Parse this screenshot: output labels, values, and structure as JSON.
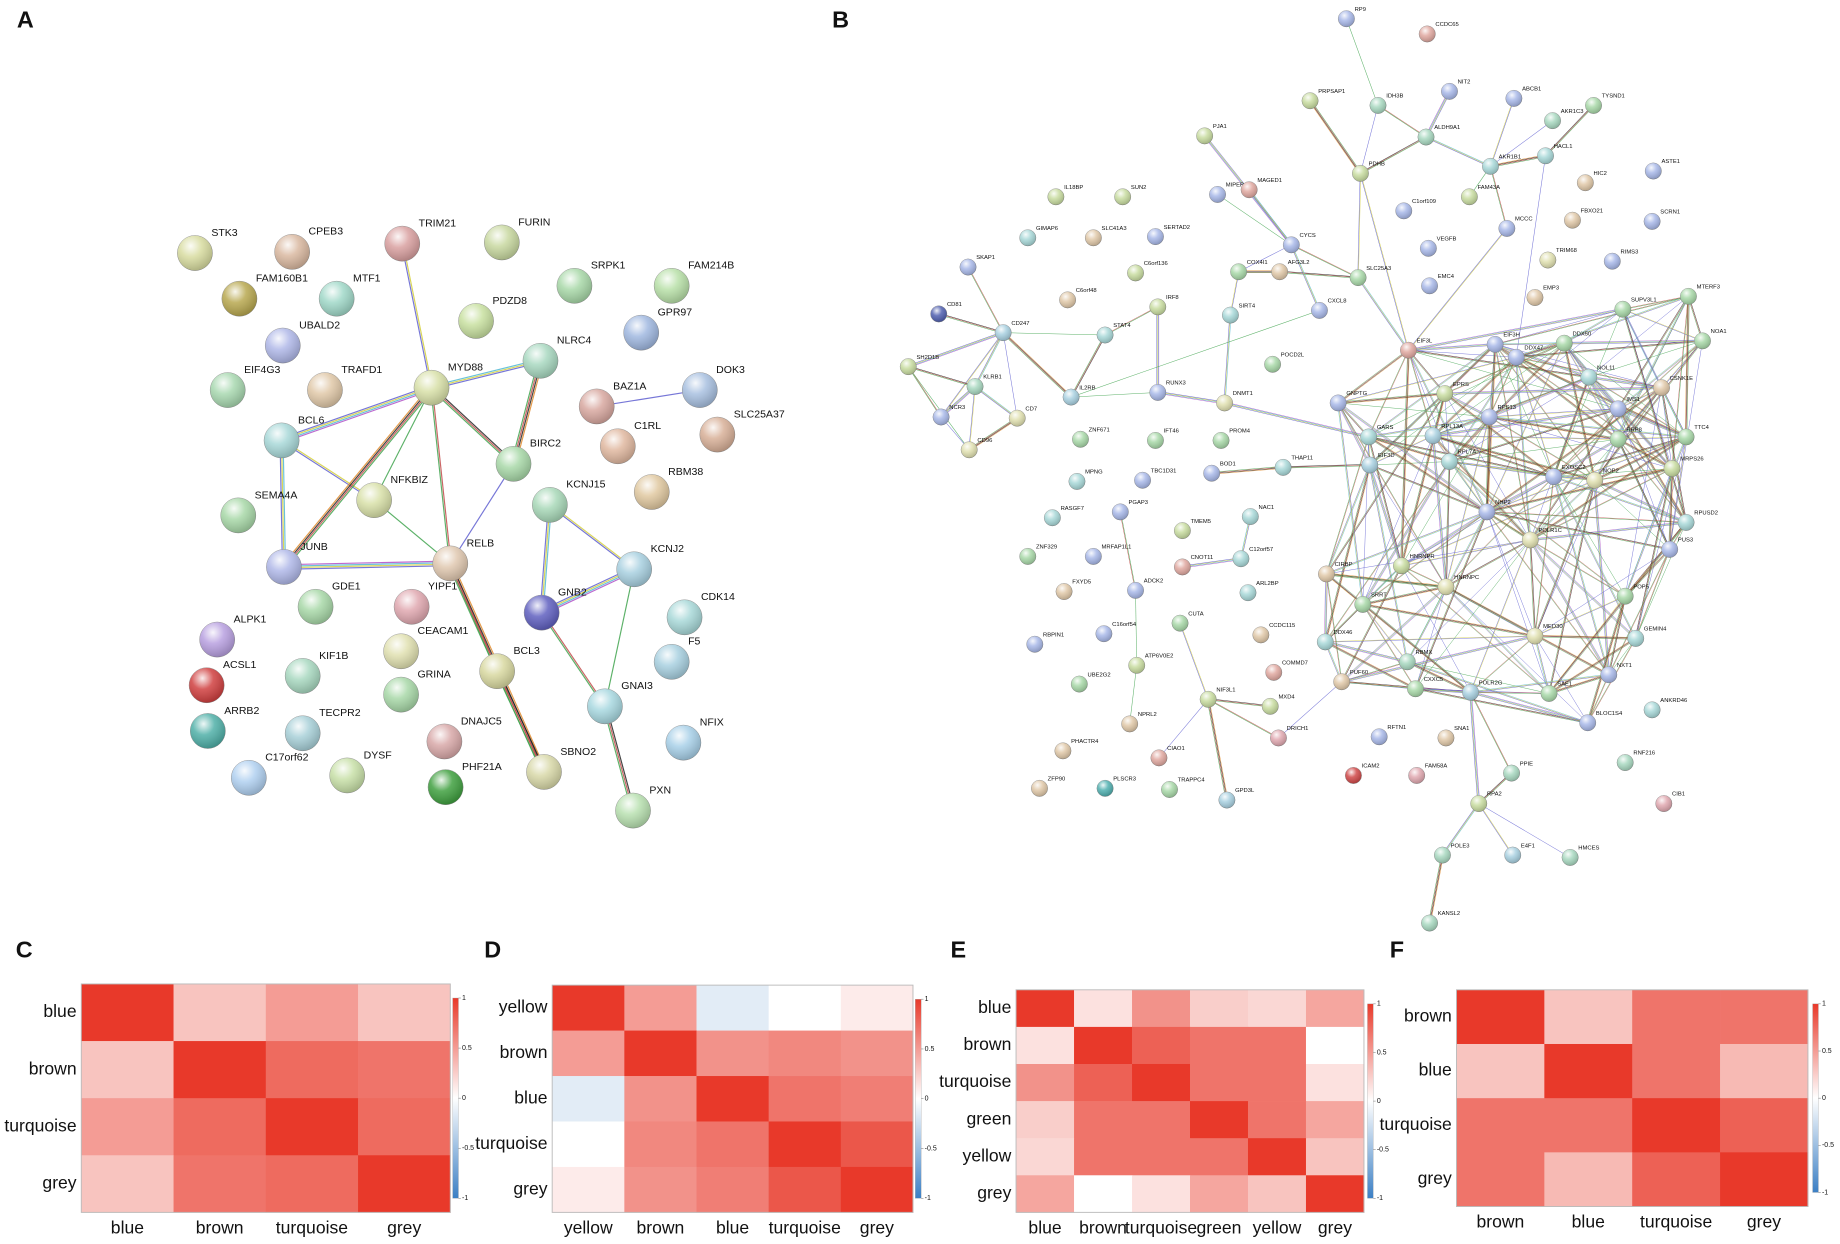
{
  "panel_labels": [
    "A",
    "B",
    "C",
    "D",
    "E",
    "F"
  ],
  "network_a": {
    "nodes": [
      {
        "label": "STK3",
        "color": "#d8dca0"
      },
      {
        "label": "CPEB3",
        "color": "#d9b8a0"
      },
      {
        "label": "TRIM21",
        "color": "#d9a0a0"
      },
      {
        "label": "FURIN",
        "color": "#c8d8a0"
      },
      {
        "label": "FAM160B1",
        "color": "#b8a850"
      },
      {
        "label": "MTF1",
        "color": "#a0d8c8"
      },
      {
        "label": "SRPK1",
        "color": "#a8d8a8"
      },
      {
        "label": "FAM214B",
        "color": "#b8e0a8"
      },
      {
        "label": "UBALD2",
        "color": "#b0b8e8"
      },
      {
        "label": "PDZD8",
        "color": "#c8e0a0"
      },
      {
        "label": "GPR97",
        "color": "#a0b8e0"
      },
      {
        "label": "EIF4G3",
        "color": "#a8d8b0"
      },
      {
        "label": "TRAFD1",
        "color": "#e0c8a8"
      },
      {
        "label": "MYD88",
        "color": "#d8e0a8"
      },
      {
        "label": "NLRC4",
        "color": "#a8d8c0"
      },
      {
        "label": "DOK3",
        "color": "#a8c0e0"
      },
      {
        "label": "BAZ1A",
        "color": "#d8a8a0"
      },
      {
        "label": "BCL6",
        "color": "#a8d8d8"
      },
      {
        "label": "C1RL",
        "color": "#e0b8a0"
      },
      {
        "label": "SLC25A37",
        "color": "#d8b098"
      },
      {
        "label": "BIRC2",
        "color": "#a8d8a8"
      },
      {
        "label": "RBM38",
        "color": "#e0c8a0"
      },
      {
        "label": "SEMA4A",
        "color": "#a8d8a8"
      },
      {
        "label": "NFKBIZ",
        "color": "#d8e0a8"
      },
      {
        "label": "KCNJ15",
        "color": "#a8d8b8"
      },
      {
        "label": "KCNJ2",
        "color": "#a8d0e0"
      },
      {
        "label": "JUNB",
        "color": "#b0b8e8"
      },
      {
        "label": "RELB",
        "color": "#e0c8b0"
      },
      {
        "label": "GDE1",
        "color": "#a8d8a8"
      },
      {
        "label": "YIPF1",
        "color": "#e0a8b0"
      },
      {
        "label": "GNB2",
        "color": "#6060c0"
      },
      {
        "label": "CDK14",
        "color": "#a8d8d8"
      },
      {
        "label": "ALPK1",
        "color": "#b8a0e0"
      },
      {
        "label": "CEACAM1",
        "color": "#e0e0b0"
      },
      {
        "label": "BCL3",
        "color": "#d8d8a0"
      },
      {
        "label": "F5",
        "color": "#a8d0e0"
      },
      {
        "label": "ACSL1",
        "color": "#d04040"
      },
      {
        "label": "KIF1B",
        "color": "#a8d8c0"
      },
      {
        "label": "GRINA",
        "color": "#a8d8a8"
      },
      {
        "label": "ARRB2",
        "color": "#50b0a8"
      },
      {
        "label": "TECPR2",
        "color": "#a8d0d8"
      },
      {
        "label": "GNAI3",
        "color": "#a8d8e0"
      },
      {
        "label": "NFIX",
        "color": "#a8d0e8"
      },
      {
        "label": "DNAJC5",
        "color": "#d8a8a8"
      },
      {
        "label": "C17orf62",
        "color": "#b0d0f0"
      },
      {
        "label": "DYSF",
        "color": "#c8e0a8"
      },
      {
        "label": "SBNO2",
        "color": "#d8d8a8"
      },
      {
        "label": "PHF21A",
        "color": "#40a040"
      },
      {
        "label": "PXN",
        "color": "#b8e0b0"
      }
    ]
  },
  "network_b": {
    "nodes": [
      {
        "label": "RP9",
        "color": "#a8b8e8"
      },
      {
        "label": "CCDC65",
        "color": "#e0a8a0"
      },
      {
        "label": "PRPSAP1",
        "color": "#c8dca0"
      },
      {
        "label": "IDH3B",
        "color": "#a8d8c0"
      },
      {
        "label": "NIT2",
        "color": "#a8b8e8"
      },
      {
        "label": "ABCB1",
        "color": "#a8b8e8"
      },
      {
        "label": "AKR1C3",
        "color": "#a8d8c0"
      },
      {
        "label": "TYSND1",
        "color": "#a8d8a8"
      },
      {
        "label": "ALDH9A1",
        "color": "#a8d8c0"
      },
      {
        "label": "PJA1",
        "color": "#c8dca0"
      },
      {
        "label": "AKR1B1",
        "color": "#a8d8d8"
      },
      {
        "label": "HACL1",
        "color": "#a8d8d8"
      },
      {
        "label": "PDHB",
        "color": "#c8dca0"
      },
      {
        "label": "MIPEP",
        "color": "#a8b8e8"
      },
      {
        "label": "MAGED1",
        "color": "#e0a8a0"
      },
      {
        "label": "FAM43A",
        "color": "#c8dca0"
      },
      {
        "label": "HIC2",
        "color": "#e0c8a8"
      },
      {
        "label": "ASTE1",
        "color": "#a8b8e8"
      },
      {
        "label": "IL18BP",
        "color": "#c8dca0"
      },
      {
        "label": "SUN2",
        "color": "#c8dca0"
      },
      {
        "label": "C1orf109",
        "color": "#a8b8e8"
      },
      {
        "label": "FBXO21",
        "color": "#e0c8a8"
      },
      {
        "label": "SCRN1",
        "color": "#a8b8e8"
      },
      {
        "label": "GIMAP6",
        "color": "#a8d8d8"
      },
      {
        "label": "SLC41A3",
        "color": "#e0c8a8"
      },
      {
        "label": "SERTAD2",
        "color": "#a8b8e8"
      },
      {
        "label": "CYCS",
        "color": "#a8b8e8"
      },
      {
        "label": "MCCC",
        "color": "#a8b8e8"
      },
      {
        "label": "VEGFB",
        "color": "#a8b8e8"
      },
      {
        "label": "RIMS3",
        "color": "#a8b8e8"
      },
      {
        "label": "TRIM68",
        "color": "#e0e0b0"
      },
      {
        "label": "SKAP1",
        "color": "#a8b8e8"
      },
      {
        "label": "C6orf136",
        "color": "#c8dca0"
      },
      {
        "label": "COX4I1",
        "color": "#a8d8a8"
      },
      {
        "label": "AFG3L2",
        "color": "#e0c8a8"
      },
      {
        "label": "SLC25A3",
        "color": "#a8d8a8"
      },
      {
        "label": "EMC4",
        "color": "#a8b8e8"
      },
      {
        "label": "C6orf48",
        "color": "#e0c8a8"
      },
      {
        "label": "IRF8",
        "color": "#c8dca0"
      },
      {
        "label": "SIRT4",
        "color": "#a8d8d8"
      },
      {
        "label": "CXCL8",
        "color": "#a8b8e8"
      },
      {
        "label": "EMP3",
        "color": "#e0c8a8"
      },
      {
        "label": "SUPV3L1",
        "color": "#a8d8a8"
      },
      {
        "label": "MTERF3",
        "color": "#a8d8a8"
      },
      {
        "label": "CD81",
        "color": "#5060b0"
      },
      {
        "label": "CD247",
        "color": "#a8d0e0"
      },
      {
        "label": "STAT4",
        "color": "#a8d8d8"
      },
      {
        "label": "NOA1",
        "color": "#a8d8a8"
      },
      {
        "label": "SH2D1B",
        "color": "#c8dca0"
      },
      {
        "label": "EIF3L",
        "color": "#e0a8a0"
      },
      {
        "label": "EIF3H",
        "color": "#a8b8e8"
      },
      {
        "label": "DDX47",
        "color": "#a8b8e8"
      },
      {
        "label": "DDX50",
        "color": "#a8d8a8"
      },
      {
        "label": "POCD2L",
        "color": "#a8d8a8"
      },
      {
        "label": "KLRB1",
        "color": "#a8d8c0"
      },
      {
        "label": "IL2RB",
        "color": "#a8d0e0"
      },
      {
        "label": "RUNX3",
        "color": "#a8b8e8"
      },
      {
        "label": "NOL11",
        "color": "#a8d8d8"
      },
      {
        "label": "CSNK1E",
        "color": "#e0c8a8"
      },
      {
        "label": "NCR3",
        "color": "#a8b8e8"
      },
      {
        "label": "CD7",
        "color": "#e0e0b0"
      },
      {
        "label": "DNMT1",
        "color": "#e0e0b0"
      },
      {
        "label": "GNPTG",
        "color": "#a8b8e8"
      },
      {
        "label": "IMS1",
        "color": "#a8b8e8"
      },
      {
        "label": "CD96",
        "color": "#e0e0b0"
      },
      {
        "label": "ZNF671",
        "color": "#a8d8a8"
      },
      {
        "label": "IFT46",
        "color": "#a8d8a8"
      },
      {
        "label": "PROM4",
        "color": "#a8d8a8"
      },
      {
        "label": "TTC4",
        "color": "#a8d8a8"
      },
      {
        "label": "RRP8",
        "color": "#a8d8a8"
      },
      {
        "label": "THAP11",
        "color": "#a8d8d8"
      },
      {
        "label": "MPNG",
        "color": "#a8d8d8"
      },
      {
        "label": "TBC1D31",
        "color": "#a8b8e8"
      },
      {
        "label": "BOD1",
        "color": "#a8b8e8"
      },
      {
        "label": "MRPS26",
        "color": "#c8dca0"
      },
      {
        "label": "NOP2",
        "color": "#e0e0b0"
      },
      {
        "label": "RASGF7",
        "color": "#a8d8d8"
      },
      {
        "label": "PGAP3",
        "color": "#a8b8e8"
      },
      {
        "label": "NAC1",
        "color": "#a8d8d8"
      },
      {
        "label": "TMEM5",
        "color": "#c8dca0"
      },
      {
        "label": "RPUSD2",
        "color": "#a8d8d8"
      },
      {
        "label": "ZNF329",
        "color": "#a8d8a8"
      },
      {
        "label": "MRFAP1L1",
        "color": "#a8b8e8"
      },
      {
        "label": "CNOT11",
        "color": "#e0a8a0"
      },
      {
        "label": "C12orf57",
        "color": "#a8d8d8"
      },
      {
        "label": "PUS3",
        "color": "#a8b8e8"
      },
      {
        "label": "FXYD5",
        "color": "#e0c8a8"
      },
      {
        "label": "ADCK2",
        "color": "#a8b8e8"
      },
      {
        "label": "ARL2BP",
        "color": "#a8d8d8"
      },
      {
        "label": "CIRBP",
        "color": "#e0c8a8"
      },
      {
        "label": "POP5",
        "color": "#a8d8a8"
      },
      {
        "label": "CUTA",
        "color": "#a8d8a8"
      },
      {
        "label": "CCDC115",
        "color": "#e0c8a8"
      },
      {
        "label": "RBPIN1",
        "color": "#a8b8e8"
      },
      {
        "label": "C16orf54",
        "color": "#a8b8e8"
      },
      {
        "label": "MED30",
        "color": "#e0e0b0"
      },
      {
        "label": "GEMIN4",
        "color": "#a8d8d8"
      },
      {
        "label": "UBE2G2",
        "color": "#a8d8a8"
      },
      {
        "label": "ATP6V0E2",
        "color": "#c8dca0"
      },
      {
        "label": "COMMD7",
        "color": "#e0a8a0"
      },
      {
        "label": "PUF60",
        "color": "#e0c8a8"
      },
      {
        "label": "CXXC5",
        "color": "#a8d8a8"
      },
      {
        "label": "POLR2G",
        "color": "#a8d0e0"
      },
      {
        "label": "SAE1",
        "color": "#a8d8a8"
      },
      {
        "label": "NXT1",
        "color": "#a8b8e8"
      },
      {
        "label": "ANKRD46",
        "color": "#a8d8d8"
      },
      {
        "label": "NPRL2",
        "color": "#e0c8a8"
      },
      {
        "label": "NIF3L1",
        "color": "#c8dca0"
      },
      {
        "label": "MXD4",
        "color": "#c8dca0"
      },
      {
        "label": "BLOC1S4",
        "color": "#a8b8e8"
      },
      {
        "label": "PHACTR4",
        "color": "#e0c8a8"
      },
      {
        "label": "RFTN1",
        "color": "#a8b8e8"
      },
      {
        "label": "SNA1",
        "color": "#e0c8a8"
      },
      {
        "label": "CIAO1",
        "color": "#e0a8a0"
      },
      {
        "label": "DRICH1",
        "color": "#e0a8b0"
      },
      {
        "label": "RNF216",
        "color": "#a8d8c0"
      },
      {
        "label": "ZFP90",
        "color": "#e0c8a8"
      },
      {
        "label": "PLSCR3",
        "color": "#50b0b0"
      },
      {
        "label": "TRAPPC4",
        "color": "#a8d8a8"
      },
      {
        "label": "ICAM2",
        "color": "#d04848"
      },
      {
        "label": "FAM58A",
        "color": "#e0a8b0"
      },
      {
        "label": "PPIE",
        "color": "#a8d8c0"
      },
      {
        "label": "GPD3L",
        "color": "#a8d0e0"
      },
      {
        "label": "CIB1",
        "color": "#e0a8b0"
      },
      {
        "label": "RPA2",
        "color": "#c8dca0"
      },
      {
        "label": "POLE3",
        "color": "#a8d8c0"
      },
      {
        "label": "E4F1",
        "color": "#a8d0e0"
      },
      {
        "label": "HMCES",
        "color": "#a8d8c0"
      },
      {
        "label": "KANSL2",
        "color": "#a8d8c0"
      },
      {
        "label": "EPRS",
        "color": "#c8dca0"
      },
      {
        "label": "RPS13",
        "color": "#a8b8e8"
      },
      {
        "label": "RPL7A",
        "color": "#a8d8d8"
      },
      {
        "label": "GARS",
        "color": "#a8d8d8"
      },
      {
        "label": "EIF3D",
        "color": "#a8d0e0"
      },
      {
        "label": "HNRNPR",
        "color": "#c8dca0"
      },
      {
        "label": "HNRNPC",
        "color": "#e0e0b0"
      },
      {
        "label": "SRRT",
        "color": "#a8d8a8"
      },
      {
        "label": "RBMX",
        "color": "#a8d8c0"
      },
      {
        "label": "DDX46",
        "color": "#a8d8d8"
      },
      {
        "label": "POLR1C",
        "color": "#e0e0b0"
      },
      {
        "label": "RPL13A",
        "color": "#a8d0e0"
      },
      {
        "label": "NHP2",
        "color": "#a8b8e8"
      },
      {
        "label": "EXOSC2",
        "color": "#a8b8e8"
      }
    ]
  },
  "chart_data": [
    {
      "type": "heatmap",
      "x": [
        "blue",
        "brown",
        "turquoise",
        "grey"
      ],
      "y": [
        "blue",
        "brown",
        "turquoise",
        "grey"
      ],
      "values": [
        [
          1,
          0.3,
          0.5,
          0.3
        ],
        [
          0.3,
          1,
          0.75,
          0.7
        ],
        [
          0.5,
          0.75,
          1,
          0.75
        ],
        [
          0.3,
          0.7,
          0.75,
          1
        ]
      ],
      "zlim": [
        -1,
        1
      ],
      "zticks": [
        1,
        0.5,
        0,
        -0.5,
        -1
      ],
      "colors": [
        "#3b7fc4",
        "#ffffff",
        "#e8392a"
      ]
    },
    {
      "type": "heatmap",
      "x": [
        "yellow",
        "brown",
        "blue",
        "turquoise",
        "grey"
      ],
      "y": [
        "yellow",
        "brown",
        "blue",
        "turquoise",
        "grey"
      ],
      "values": [
        [
          1,
          0.5,
          -0.15,
          0,
          0.1
        ],
        [
          0.5,
          1,
          0.55,
          0.6,
          0.55
        ],
        [
          -0.15,
          0.55,
          1,
          0.7,
          0.65
        ],
        [
          0,
          0.6,
          0.7,
          1,
          0.85
        ],
        [
          0.1,
          0.55,
          0.65,
          0.85,
          1
        ]
      ],
      "zlim": [
        -1,
        1
      ],
      "zticks": [
        1,
        0.5,
        0,
        -0.5,
        -1
      ],
      "colors": [
        "#3b7fc4",
        "#ffffff",
        "#e8392a"
      ]
    },
    {
      "type": "heatmap",
      "x": [
        "blue",
        "brown",
        "turquoise",
        "green",
        "yellow",
        "grey"
      ],
      "y": [
        "blue",
        "brown",
        "turquoise",
        "green",
        "yellow",
        "grey"
      ],
      "values": [
        [
          1,
          0.15,
          0.55,
          0.25,
          0.2,
          0.45
        ],
        [
          0.15,
          1,
          0.8,
          0.7,
          0.7,
          0
        ],
        [
          0.55,
          0.8,
          1,
          0.7,
          0.7,
          0.15
        ],
        [
          0.25,
          0.7,
          0.7,
          1,
          0.7,
          0.45
        ],
        [
          0.2,
          0.7,
          0.7,
          0.7,
          1,
          0.3
        ],
        [
          0.45,
          0,
          0.15,
          0.45,
          0.3,
          1
        ]
      ],
      "zlim": [
        -1,
        1
      ],
      "zticks": [
        1,
        0.5,
        0,
        -0.5,
        -1
      ],
      "colors": [
        "#3b7fc4",
        "#ffffff",
        "#e8392a"
      ]
    },
    {
      "type": "heatmap",
      "x": [
        "brown",
        "blue",
        "turquoise",
        "grey"
      ],
      "y": [
        "brown",
        "blue",
        "turquoise",
        "grey"
      ],
      "values": [
        [
          1,
          0.3,
          0.7,
          0.7
        ],
        [
          0.3,
          1,
          0.7,
          0.35
        ],
        [
          0.7,
          0.7,
          1,
          0.8
        ],
        [
          0.7,
          0.35,
          0.8,
          1
        ]
      ],
      "zlim": [
        -1,
        1
      ],
      "zticks": [
        1,
        0.5,
        0,
        -0.5,
        -1
      ],
      "colors": [
        "#3b7fc4",
        "#ffffff",
        "#e8392a"
      ]
    }
  ]
}
